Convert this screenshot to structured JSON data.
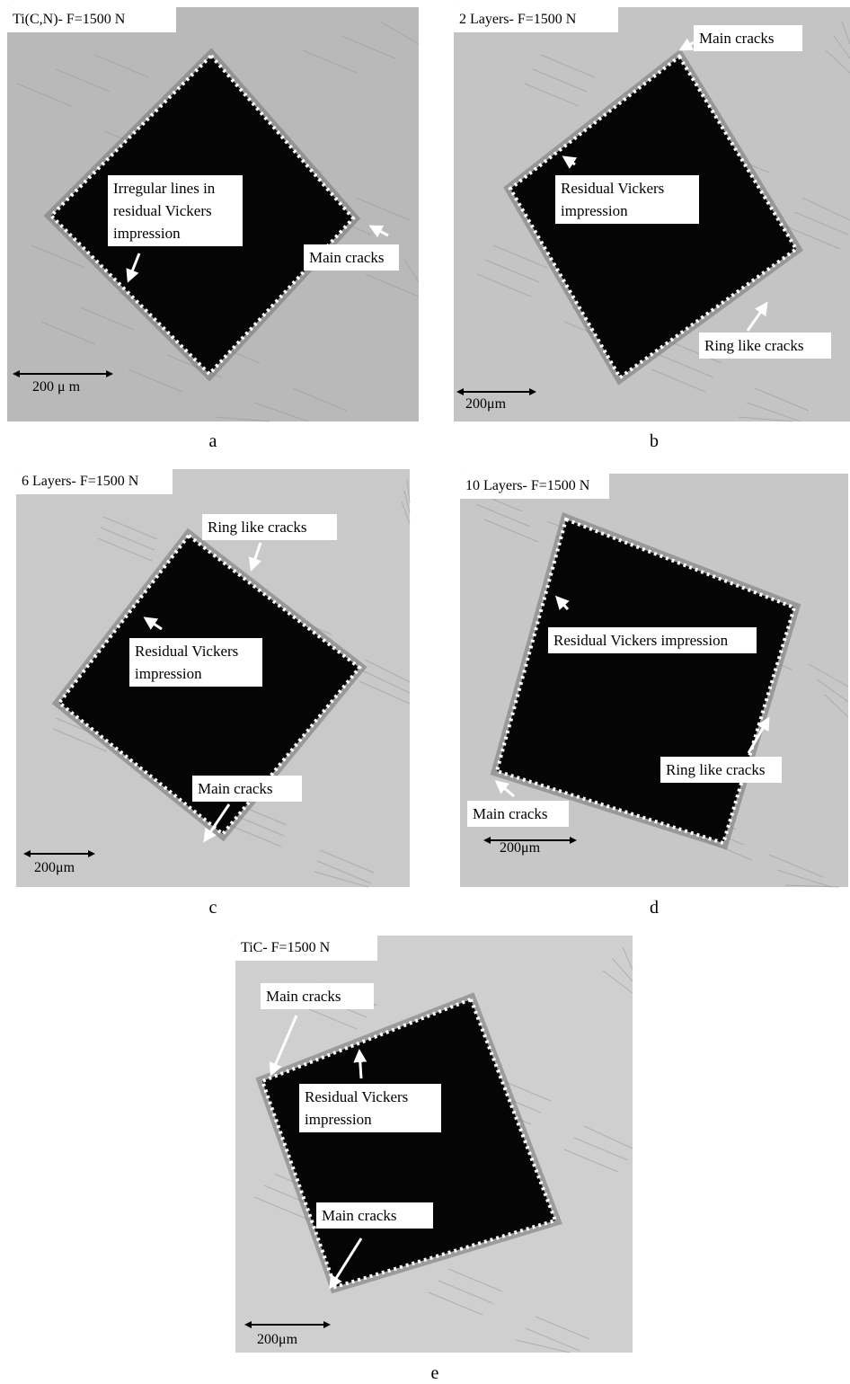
{
  "panels": [
    {
      "title": "Ti(C,N)- F=1500 N",
      "annotations": [
        "Irregular lines in residual Vickers impression",
        "Main cracks"
      ],
      "scale_label": "200 μ m",
      "caption": "a"
    },
    {
      "title": "2 Layers- F=1500 N",
      "annotations": [
        "Main cracks",
        "Residual Vickers impression",
        "Ring like cracks"
      ],
      "scale_label": "200μm",
      "caption": "b"
    },
    {
      "title": "6 Layers- F=1500 N",
      "annotations": [
        "Ring like cracks",
        "Residual Vickers impression",
        "Main cracks"
      ],
      "scale_label": "200μm",
      "caption": "c"
    },
    {
      "title": "10 Layers- F=1500 N",
      "annotations": [
        "Residual Vickers impression",
        "Ring like cracks",
        "Main cracks"
      ],
      "scale_label": "200μm",
      "caption": "d"
    },
    {
      "title": "TiC- F=1500 N",
      "annotations": [
        "Main cracks",
        "Residual Vickers impression",
        "Main cracks"
      ],
      "scale_label": "200μm",
      "caption": "e"
    }
  ]
}
